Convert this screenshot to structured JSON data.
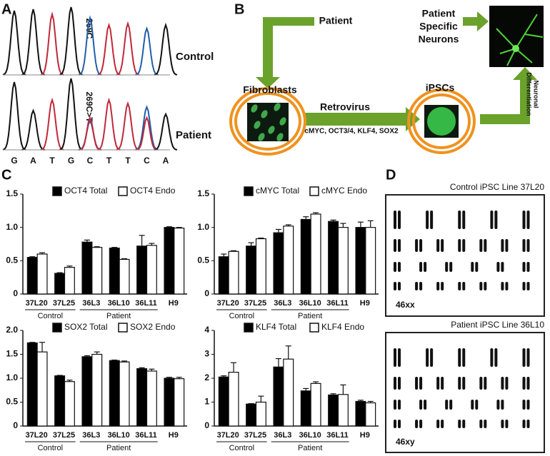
{
  "panel_labels": [
    "A",
    "B",
    "C",
    "D"
  ],
  "panel_a": {
    "rows": [
      {
        "label": "Control",
        "annotation": "269C"
      },
      {
        "label": "Patient",
        "annotation": "269C>T"
      }
    ],
    "bases": [
      "G",
      "A",
      "T",
      "G",
      "C",
      "T",
      "T",
      "C",
      "A"
    ]
  },
  "panel_b": {
    "patient": "Patient",
    "neurons": [
      "Patient",
      "Specific",
      "Neurons"
    ],
    "fibroblasts": "Fibroblasts",
    "retrovirus": "Retrovirus",
    "factors": "cMYC, OCT3/4, KLF4, SOX2",
    "ipscs": "iPSCs",
    "differentiation": [
      "Neuronal",
      "Differentiation"
    ]
  },
  "panel_d": {
    "karyotypes": [
      {
        "title": "Control iPSC Line 37L20",
        "label": "46xx"
      },
      {
        "title": "Patient iPSC Line 36L10",
        "label": "46xy"
      }
    ]
  },
  "chart_data": [
    {
      "type": "bar",
      "categories": [
        "37L20",
        "37L25",
        "36L3",
        "36L10",
        "36L11",
        "H9"
      ],
      "group_labels": [
        "Control",
        "Control",
        "Patient",
        "Patient",
        "Patient",
        null
      ],
      "series": [
        {
          "name": "OCT4 Total",
          "color": "#000000",
          "values": [
            0.55,
            0.31,
            0.78,
            0.69,
            0.72,
            1.0
          ],
          "errors": [
            0.01,
            0.01,
            0.03,
            0.01,
            0.16,
            0.01
          ]
        },
        {
          "name": "OCT4 Endo",
          "color": "#ffffff",
          "values": [
            0.6,
            0.4,
            0.7,
            0.52,
            0.73,
            0.99
          ],
          "errors": [
            0.02,
            0.02,
            0.01,
            0.01,
            0.03,
            0.01
          ]
        }
      ],
      "ylim": [
        0,
        1.5
      ],
      "yticks": [
        0,
        0.5,
        {
          "value": 1,
          "label": "1.0"
        },
        1.5
      ]
    },
    {
      "type": "bar",
      "categories": [
        "37L20",
        "37L25",
        "36L3",
        "36L10",
        "36L11",
        "H9"
      ],
      "group_labels": [
        "Control",
        "Control",
        "Patient",
        "Patient",
        "Patient",
        null
      ],
      "series": [
        {
          "name": "cMYC Total",
          "color": "#000000",
          "values": [
            0.56,
            0.72,
            0.92,
            1.12,
            1.09,
            1.0
          ],
          "errors": [
            0.04,
            0.05,
            0.05,
            0.04,
            0.02,
            0.08
          ]
        },
        {
          "name": "cMYC Endo",
          "color": "#ffffff",
          "values": [
            0.64,
            0.83,
            1.02,
            1.2,
            1.0,
            1.0
          ],
          "errors": [
            0.01,
            0.01,
            0.02,
            0.02,
            0.06,
            0.1
          ]
        }
      ],
      "ylim": [
        0,
        1.5
      ],
      "yticks": [
        0,
        0.5,
        {
          "value": 1,
          "label": "1.0"
        },
        1.5
      ]
    },
    {
      "type": "bar",
      "categories": [
        "37L20",
        "37L25",
        "36L3",
        "36L10",
        "36L11",
        "H9"
      ],
      "group_labels": [
        "Control",
        "Control",
        "Patient",
        "Patient",
        "Patient",
        null
      ],
      "series": [
        {
          "name": "SOX2 Total",
          "color": "#000000",
          "values": [
            1.74,
            1.05,
            1.45,
            1.37,
            1.2,
            1.0
          ],
          "errors": [
            0.01,
            0.01,
            0.02,
            0.01,
            0.02,
            0.02
          ]
        },
        {
          "name": "SOX2 Endo",
          "color": "#ffffff",
          "values": [
            1.55,
            0.93,
            1.5,
            1.34,
            1.15,
            0.99
          ],
          "errors": [
            0.2,
            0.03,
            0.05,
            0.02,
            0.04,
            0.03
          ]
        }
      ],
      "ylim": [
        0,
        2
      ],
      "yticks": [
        0,
        0.5,
        {
          "value": 1,
          "label": "1.0"
        },
        1.5,
        {
          "value": 2,
          "label": "2.0"
        }
      ]
    },
    {
      "type": "bar",
      "categories": [
        "37L20",
        "37L25",
        "36L3",
        "36L10",
        "36L11",
        "H9"
      ],
      "group_labels": [
        "Control",
        "Control",
        "Patient",
        "Patient",
        "Patient",
        null
      ],
      "series": [
        {
          "name": "KLF4 Total",
          "color": "#000000",
          "values": [
            2.05,
            0.92,
            2.47,
            1.47,
            1.3,
            1.03
          ],
          "errors": [
            0.05,
            0.02,
            0.35,
            0.1,
            0.05,
            0.05
          ]
        },
        {
          "name": "KLF4 Endo",
          "color": "#ffffff",
          "values": [
            2.25,
            1.0,
            2.8,
            1.78,
            1.32,
            0.97
          ],
          "errors": [
            0.4,
            0.25,
            0.55,
            0.07,
            0.4,
            0.06
          ]
        }
      ],
      "ylim": [
        0,
        4
      ],
      "yticks": [
        0,
        1,
        2,
        3,
        4
      ]
    }
  ]
}
